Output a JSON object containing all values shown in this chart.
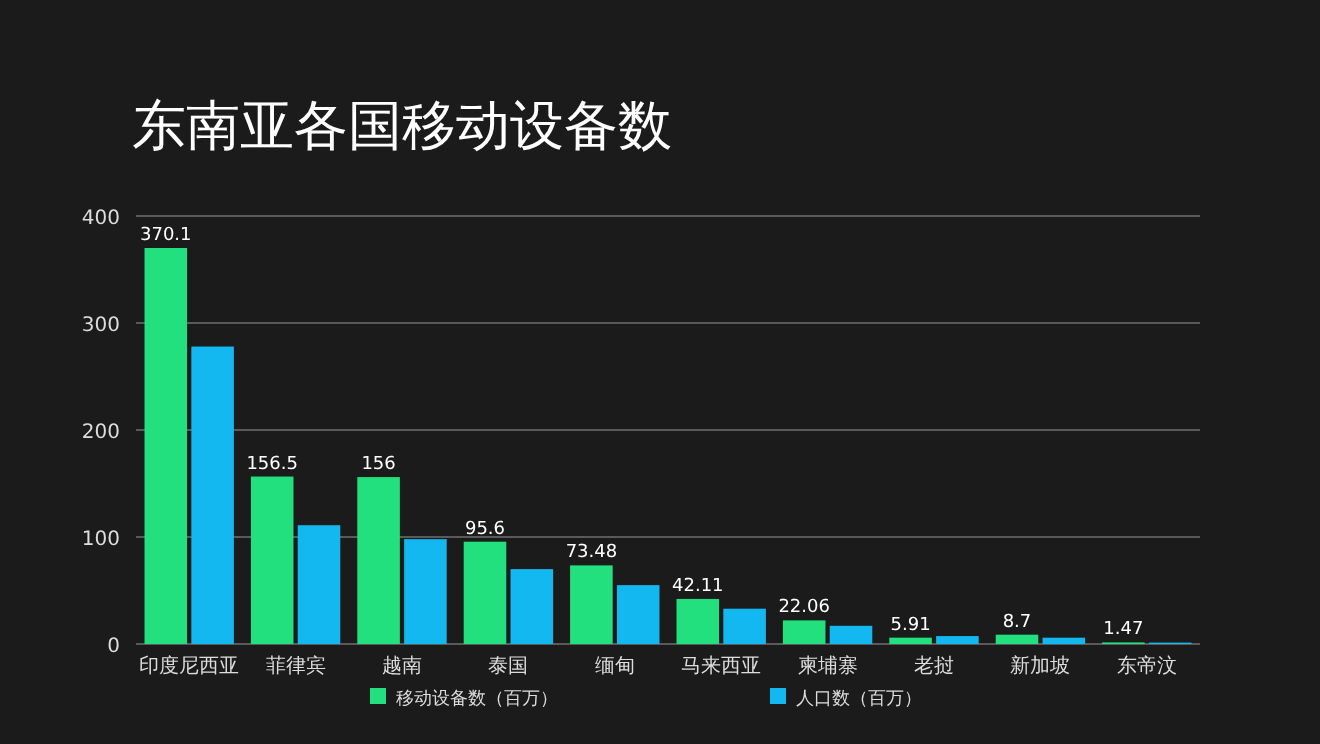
{
  "chart_data": {
    "type": "bar",
    "title": "东南亚各国移动设备数",
    "categories": [
      "印度尼西亚",
      "菲律宾",
      "越南",
      "泰国",
      "缅甸",
      "马来西亚",
      "柬埔寨",
      "老挝",
      "新加坡",
      "东帝汶"
    ],
    "series": [
      {
        "name": "移动设备数（百万）",
        "color": "#22e07e",
        "values": [
          370.1,
          156.5,
          156,
          95.6,
          73.48,
          42.11,
          22.06,
          5.91,
          8.7,
          1.47
        ],
        "value_labels": [
          "370.1",
          "156.5",
          "156",
          "95.6",
          "73.48",
          "42.11",
          "22.06",
          "5.91",
          "8.7",
          "1.47"
        ]
      },
      {
        "name": "人口数（百万）",
        "color": "#14b8f0",
        "values": [
          278,
          111,
          98,
          70,
          55,
          33,
          17,
          7.4,
          5.9,
          1.3
        ]
      }
    ],
    "ylim": [
      0,
      400
    ],
    "yticks": [
      0,
      100,
      200,
      300,
      400
    ],
    "grid": "y",
    "legend": "bottom"
  }
}
